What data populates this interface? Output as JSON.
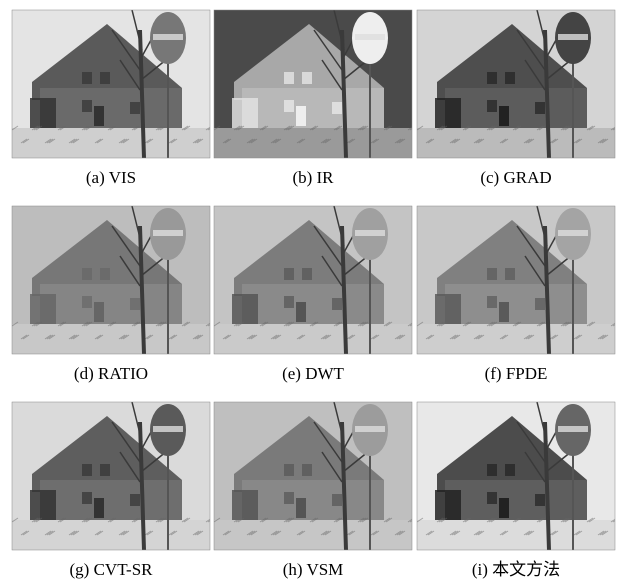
{
  "panels": [
    {
      "caption": "(a) VIS"
    },
    {
      "caption": "(b) IR"
    },
    {
      "caption": "(c) GRAD"
    },
    {
      "caption": "(d) RATIO"
    },
    {
      "caption": "(e) DWT"
    },
    {
      "caption": "(f) FPDE"
    },
    {
      "caption": "(g) CVT-SR"
    },
    {
      "caption": "(h) VSM"
    },
    {
      "caption": "(i) 本文方法"
    }
  ]
}
